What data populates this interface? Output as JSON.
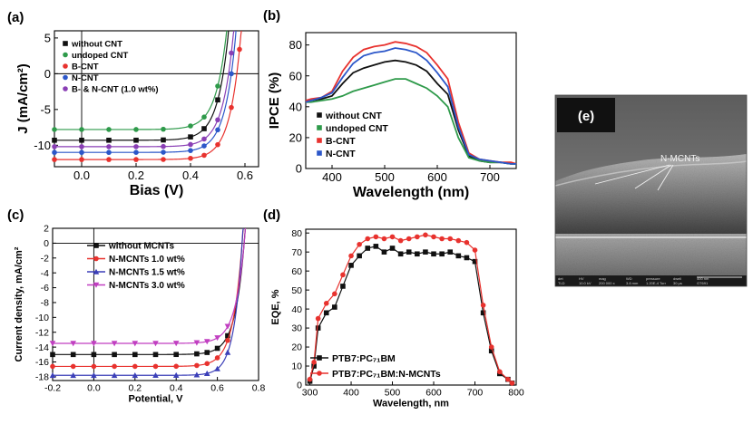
{
  "figure": {
    "background": "#ffffff"
  },
  "chart_data": [
    {
      "id": "a",
      "type": "line",
      "panel_label": "(a)",
      "xlabel": "Bias (V)",
      "ylabel": "J (mA/cm²)",
      "xlim": [
        -0.1,
        0.65
      ],
      "ylim": [
        -13,
        6
      ],
      "xticks": [
        0.0,
        0.2,
        0.4,
        0.6
      ],
      "xtick_labels": [
        "0.0",
        "0.2",
        "0.4",
        "0.6"
      ],
      "yticks": [
        -10,
        -5,
        0,
        5
      ],
      "ytick_labels": [
        "-10",
        "-5",
        "0",
        "5"
      ],
      "zero_lines": true,
      "legend_position": "top-left",
      "series": [
        {
          "name": "without CNT",
          "color": "#111111",
          "marker": "square",
          "jsc": -9.3,
          "voc": 0.52,
          "s": 0.04,
          "x": [
            -0.1,
            0.0,
            0.1,
            0.2,
            0.3,
            0.4,
            0.45,
            0.5,
            0.55,
            0.58
          ]
        },
        {
          "name": "undoped CNT",
          "color": "#2e9a4a",
          "marker": "circle",
          "jsc": -7.8,
          "voc": 0.51,
          "s": 0.04,
          "x": [
            -0.1,
            0.0,
            0.1,
            0.2,
            0.3,
            0.4,
            0.45,
            0.5,
            0.55,
            0.58
          ]
        },
        {
          "name": "B-CNT",
          "color": "#e8322e",
          "marker": "circle",
          "jsc": -12.0,
          "voc": 0.57,
          "s": 0.04,
          "x": [
            -0.1,
            0.0,
            0.1,
            0.2,
            0.3,
            0.4,
            0.45,
            0.5,
            0.55,
            0.58,
            0.6
          ]
        },
        {
          "name": "N-CNT",
          "color": "#2c57c9",
          "marker": "circle",
          "jsc": -11.0,
          "voc": 0.55,
          "s": 0.04,
          "x": [
            -0.1,
            0.0,
            0.1,
            0.2,
            0.3,
            0.4,
            0.45,
            0.5,
            0.55,
            0.58,
            0.6
          ]
        },
        {
          "name": "B- & N-CNT (1.0 wt%)",
          "color": "#8a3fb5",
          "marker": "circle",
          "jsc": -10.2,
          "voc": 0.54,
          "s": 0.04,
          "x": [
            -0.1,
            0.0,
            0.1,
            0.2,
            0.3,
            0.4,
            0.45,
            0.5,
            0.55,
            0.58
          ]
        }
      ]
    },
    {
      "id": "b",
      "type": "line",
      "panel_label": "(b)",
      "xlabel": "Wavelength (nm)",
      "ylabel": "IPCE (%)",
      "xlim": [
        350,
        750
      ],
      "ylim": [
        0,
        88
      ],
      "xticks": [
        400,
        500,
        600,
        700
      ],
      "xtick_labels": [
        "400",
        "500",
        "600",
        "700"
      ],
      "yticks": [
        0,
        20,
        40,
        60,
        80
      ],
      "ytick_labels": [
        "0",
        "20",
        "40",
        "60",
        "80"
      ],
      "legend_position": "bottom-left",
      "x": [
        350,
        360,
        380,
        400,
        420,
        440,
        460,
        480,
        500,
        520,
        540,
        560,
        580,
        600,
        620,
        640,
        660,
        680,
        700,
        720,
        740,
        750
      ],
      "series": [
        {
          "name": "without CNT",
          "color": "#111111",
          "values": [
            43,
            44,
            45,
            47,
            55,
            62,
            65,
            67,
            69,
            70,
            69,
            67,
            63,
            55,
            48,
            25,
            8,
            5,
            4,
            4,
            3,
            3
          ]
        },
        {
          "name": "undoped CNT",
          "color": "#2e9a4a",
          "values": [
            43,
            43,
            44,
            45,
            47,
            50,
            52,
            54,
            56,
            58,
            58,
            55,
            52,
            47,
            40,
            20,
            7,
            5,
            4,
            4,
            3,
            3
          ]
        },
        {
          "name": "B-CNT",
          "color": "#e8322e",
          "values": [
            44,
            45,
            46,
            50,
            63,
            72,
            77,
            79,
            80,
            82,
            81,
            79,
            75,
            67,
            58,
            30,
            10,
            6,
            5,
            4,
            4,
            3
          ]
        },
        {
          "name": "N-CNT",
          "color": "#2c57c9",
          "values": [
            43,
            44,
            46,
            49,
            59,
            68,
            73,
            75,
            76,
            78,
            77,
            75,
            70,
            62,
            53,
            27,
            9,
            6,
            5,
            4,
            3,
            3
          ]
        }
      ]
    },
    {
      "id": "c",
      "type": "line",
      "panel_label": "(c)",
      "xlabel": "Potential, V",
      "ylabel": "Current density, mA/cm²",
      "xlim": [
        -0.2,
        0.8
      ],
      "ylim": [
        -18.5,
        2
      ],
      "xticks": [
        -0.2,
        0.0,
        0.2,
        0.4,
        0.6,
        0.8
      ],
      "xtick_labels": [
        "-0.2",
        "0.0",
        "0.2",
        "0.4",
        "0.6",
        "0.8"
      ],
      "yticks": [
        -18,
        -16,
        -14,
        -12,
        -10,
        -8,
        -6,
        -4,
        -2,
        0,
        2
      ],
      "ytick_labels": [
        "-18",
        "-16",
        "-14",
        "-12",
        "-10",
        "-8",
        "-6",
        "-4",
        "-2",
        "0",
        "2"
      ],
      "zero_lines": true,
      "legend_position": "top-center",
      "series": [
        {
          "name": "without MCNTs",
          "color": "#111111",
          "marker": "square",
          "jsc": -15.0,
          "voc": 0.73,
          "s": 0.045,
          "x": [
            -0.2,
            -0.1,
            0.0,
            0.1,
            0.2,
            0.3,
            0.4,
            0.5,
            0.55,
            0.6,
            0.65
          ]
        },
        {
          "name": "N-MCNTs 1.0 wt%",
          "color": "#e8322e",
          "marker": "circle",
          "jsc": -16.6,
          "voc": 0.72,
          "s": 0.045,
          "x": [
            -0.2,
            -0.1,
            0.0,
            0.1,
            0.2,
            0.3,
            0.4,
            0.5,
            0.55,
            0.6,
            0.65
          ]
        },
        {
          "name": "N-MCNTs 1.5 wt%",
          "color": "#3b3fb8",
          "marker": "triangle",
          "jsc": -17.8,
          "voc": 0.72,
          "s": 0.04,
          "x": [
            -0.2,
            -0.1,
            0.0,
            0.1,
            0.2,
            0.3,
            0.4,
            0.5,
            0.55,
            0.6,
            0.65
          ]
        },
        {
          "name": "N-MCNTs 3.0 wt%",
          "color": "#c13fc1",
          "marker": "tri-down",
          "jsc": -13.5,
          "voc": 0.73,
          "s": 0.045,
          "x": [
            -0.2,
            -0.1,
            0.0,
            0.1,
            0.2,
            0.3,
            0.4,
            0.5,
            0.55,
            0.6,
            0.65
          ]
        }
      ]
    },
    {
      "id": "d",
      "type": "line",
      "panel_label": "(d)",
      "xlabel": "Wavelength, nm",
      "ylabel": "EQE, %",
      "xlim": [
        290,
        800
      ],
      "ylim": [
        0,
        82
      ],
      "xticks": [
        300,
        400,
        500,
        600,
        700,
        800
      ],
      "xtick_labels": [
        "300",
        "400",
        "500",
        "600",
        "700",
        "800"
      ],
      "yticks": [
        0,
        10,
        20,
        30,
        40,
        50,
        60,
        70,
        80
      ],
      "ytick_labels": [
        "0",
        "10",
        "20",
        "30",
        "40",
        "50",
        "60",
        "70",
        "80"
      ],
      "legend_position": "bottom-center",
      "x": [
        300,
        310,
        320,
        340,
        360,
        380,
        400,
        420,
        440,
        460,
        480,
        500,
        520,
        540,
        560,
        580,
        600,
        620,
        640,
        660,
        680,
        700,
        720,
        740,
        760,
        780,
        790
      ],
      "series": [
        {
          "name": "PTB7:PC₇₁BM",
          "color": "#111111",
          "marker": "square",
          "values": [
            2,
            10,
            30,
            38,
            41,
            52,
            63,
            68,
            72,
            73,
            70,
            72,
            69,
            70,
            69,
            70,
            69,
            69,
            70,
            68,
            67,
            65,
            38,
            18,
            6,
            3,
            1
          ]
        },
        {
          "name": "PTB7:PC₇₁BM:N-MCNTs",
          "color": "#e8322e",
          "marker": "circle",
          "values": [
            3,
            12,
            35,
            43,
            48,
            58,
            68,
            74,
            77,
            78,
            77,
            78,
            76,
            77,
            78,
            79,
            78,
            77,
            77,
            76,
            75,
            71,
            42,
            20,
            7,
            3,
            1
          ]
        }
      ]
    }
  ],
  "sem_image": {
    "panel_label": "(e)",
    "annotation": "N-MCNTs",
    "info_bar_headers": [
      "det",
      "HV",
      "mag",
      "WD",
      "pressure",
      "dwell",
      "400 nm"
    ],
    "info_bar_values": [
      "TLD",
      "10.0 kV",
      "200 000 x",
      "3.8 mm",
      "1.20E-4 Torr",
      "30 µs",
      "GT691"
    ]
  }
}
